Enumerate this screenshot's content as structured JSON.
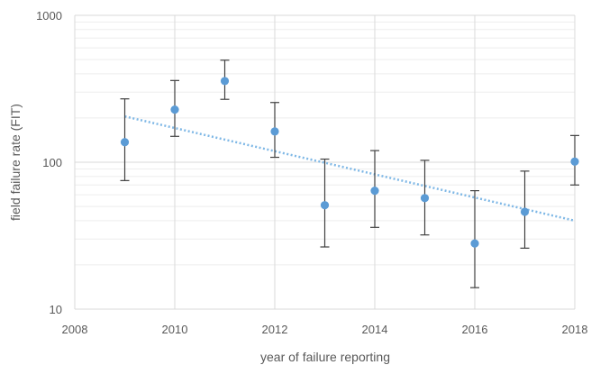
{
  "chart_data": {
    "type": "scatter",
    "title": "",
    "xlabel": "year of failure reporting",
    "ylabel": "field failure rate (FIT)",
    "xlim": [
      2008,
      2018
    ],
    "ylim": [
      10,
      1000
    ],
    "yscale": "log",
    "x_ticks": [
      2008,
      2010,
      2012,
      2014,
      2016,
      2018
    ],
    "y_ticks": [
      10,
      100,
      1000
    ],
    "x_tick_labels": [
      "2008",
      "2010",
      "2012",
      "2014",
      "2016",
      "2018"
    ],
    "y_tick_labels": [
      "10",
      "100",
      "1000"
    ],
    "grid": true,
    "legend": "none",
    "marker_color": "#5b9bd5",
    "errorbar_color": "#404040",
    "trendline_color": "#7fb8e6",
    "points": [
      {
        "x": 2009,
        "y": 137,
        "low": 75,
        "high": 270
      },
      {
        "x": 2010,
        "y": 228,
        "low": 150,
        "high": 360
      },
      {
        "x": 2011,
        "y": 357,
        "low": 268,
        "high": 495
      },
      {
        "x": 2012,
        "y": 162,
        "low": 108,
        "high": 255
      },
      {
        "x": 2013,
        "y": 51,
        "low": 26.5,
        "high": 105
      },
      {
        "x": 2014,
        "y": 64,
        "low": 36,
        "high": 120
      },
      {
        "x": 2015,
        "y": 57,
        "low": 32,
        "high": 103
      },
      {
        "x": 2016,
        "y": 28,
        "low": 14,
        "high": 64
      },
      {
        "x": 2017,
        "y": 46,
        "low": 26,
        "high": 87
      },
      {
        "x": 2018,
        "y": 101,
        "low": 70,
        "high": 152
      }
    ],
    "trendline": {
      "type": "exponential",
      "x_start": 2009,
      "y_start": 205,
      "x_end": 2018,
      "y_end": 40
    }
  }
}
